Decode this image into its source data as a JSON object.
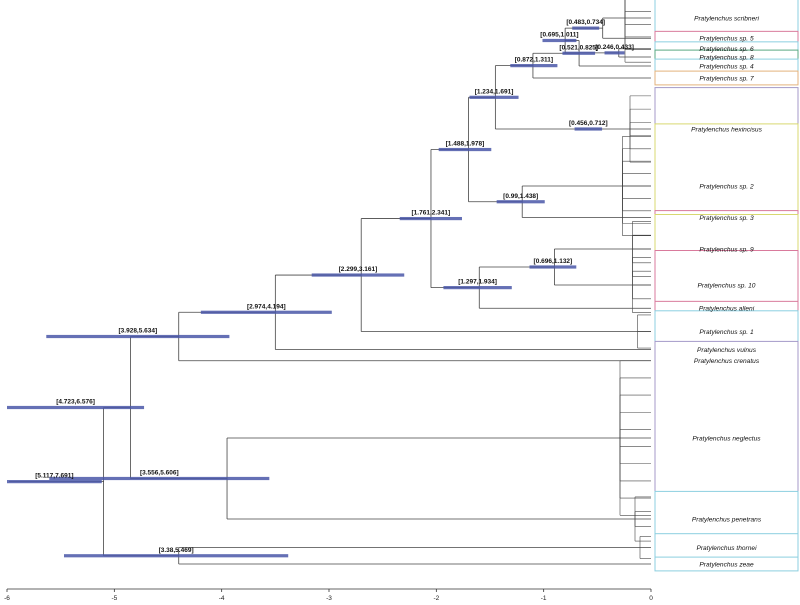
{
  "chart_data": {
    "type": "phylogenetic-tree",
    "title": "",
    "xlabel": "",
    "ylabel": "",
    "x_axis": {
      "range": [
        -6,
        0
      ],
      "ticks": [
        -6,
        -5,
        -4,
        -3,
        -2,
        -1,
        0
      ]
    },
    "grid": false,
    "legend": "none",
    "colors": {
      "branch": "#444444",
      "hpd_bar": "#4a57a8",
      "axis": "#333333",
      "box_cyan": "#8ccfe0",
      "box_pink": "#d97a9c",
      "box_yellow": "#d8d870",
      "box_purple": "#a49ac8",
      "box_green": "#5aa883",
      "box_orange": "#e3b27c"
    },
    "tips": [
      {
        "id": "scribneri",
        "label": "Pratylenchus scribneri",
        "y": 0,
        "box": "cyan",
        "stack": 8
      },
      {
        "id": "sp5",
        "label": "Pratylenchus sp. 5",
        "y": 1.35,
        "box": "pink",
        "stack": 1
      },
      {
        "id": "sp6",
        "label": "Pratylenchus sp. 6",
        "y": 2.05,
        "box": "cyan",
        "stack": 1
      },
      {
        "id": "sp8",
        "label": "Pratylenchus sp. 8",
        "y": 2.6,
        "box": "green",
        "stack": 1
      },
      {
        "id": "sp4",
        "label": "Pratylenchus sp. 4",
        "y": 3.2,
        "box": "cyan",
        "stack": 1
      },
      {
        "id": "sp7",
        "label": "Pratylenchus sp. 7",
        "y": 4.0,
        "box": "orange",
        "stack": 1
      },
      {
        "id": "hexincisus",
        "label": "Pratylenchus hexincisus",
        "y": 7.4,
        "box": "purple",
        "stack": 6
      },
      {
        "id": "sp2",
        "label": "Pratylenchus sp. 2",
        "y": 11.2,
        "box": "yellow",
        "stack": 9
      },
      {
        "id": "sp3",
        "label": "Pratylenchus sp. 3",
        "y": 13.3,
        "box": "pink",
        "stack": 1
      },
      {
        "id": "sp9",
        "label": "Pratylenchus sp. 9",
        "y": 15.4,
        "box": "yellow",
        "stack": 5
      },
      {
        "id": "sp10",
        "label": "Pratylenchus sp. 10",
        "y": 17.8,
        "box": "pink",
        "stack": 5
      },
      {
        "id": "alleni",
        "label": "Pratylenchus alleni",
        "y": 19.35,
        "box": "pink",
        "stack": 1
      },
      {
        "id": "sp1",
        "label": "Pratylenchus sp. 1",
        "y": 20.9,
        "box": "cyan",
        "stack": 3
      },
      {
        "id": "vulnus",
        "label": "Pratylenchus vulnus",
        "y": 22.1,
        "box": "cyan",
        "stack": 1
      },
      {
        "id": "crenatus",
        "label": "Pratylenchus crenatus",
        "y": 22.85,
        "box": "pink",
        "stack": 1
      },
      {
        "id": "neglectus",
        "label": "Pratylenchus neglectus",
        "y": 28.0,
        "box": "purple",
        "stack": 14
      },
      {
        "id": "penetrans",
        "label": "Pratylenchus penetrans",
        "y": 33.4,
        "box": "cyan",
        "stack": 4
      },
      {
        "id": "thornei",
        "label": "Pratylenchus thornei",
        "y": 35.3,
        "box": "cyan",
        "stack": 2
      },
      {
        "id": "zeae",
        "label": "Pratylenchus zeae",
        "y": 36.4,
        "box": "cyan",
        "stack": 1
      }
    ],
    "nodes": [
      {
        "id": "n_scrib_sp5",
        "age": -0.45,
        "children": [
          "scribneri",
          "sp5"
        ],
        "hpd": [
          -0.734,
          -0.483
        ],
        "label": "[0.483,0.734]"
      },
      {
        "id": "n_sp6_sp8",
        "age": -0.3,
        "children": [
          "sp6",
          "sp8"
        ],
        "hpd": [
          -0.433,
          -0.246
        ],
        "label": "[0.246,0.433]"
      },
      {
        "id": "n_a",
        "age": -0.8,
        "children": [
          "n_scrib_sp5",
          "n_sp6_sp8"
        ],
        "hpd": [
          -1.011,
          -0.695
        ],
        "label": "[0.695,1.011]"
      },
      {
        "id": "n_b",
        "age": -0.67,
        "children": [
          "n_a",
          "sp4"
        ],
        "hpd": [
          -0.825,
          -0.521
        ],
        "label": "[0.521,0.825]"
      },
      {
        "id": "n_c",
        "age": -1.1,
        "children": [
          "n_b",
          "sp7"
        ],
        "hpd": [
          -1.311,
          -0.872
        ],
        "label": "[0.872,1.311]"
      },
      {
        "id": "n_hex",
        "age": -0.58,
        "children": [
          "hexincisus"
        ],
        "hpd": [
          -0.712,
          -0.456
        ],
        "label": "[0.456,0.712]"
      },
      {
        "id": "n_d",
        "age": -1.45,
        "children": [
          "n_c",
          "n_hex"
        ],
        "hpd": [
          -1.691,
          -1.234
        ],
        "label": "[1.234,1.691]"
      },
      {
        "id": "n_e",
        "age": -1.2,
        "children": [
          "sp2",
          "sp3"
        ],
        "hpd": [
          -1.438,
          -0.99
        ],
        "label": "[0.99,1.438]"
      },
      {
        "id": "n_f",
        "age": -1.7,
        "children": [
          "n_d",
          "n_e"
        ],
        "hpd": [
          -1.978,
          -1.488
        ],
        "label": "[1.488,1.978]"
      },
      {
        "id": "n_g",
        "age": -0.9,
        "children": [
          "sp9",
          "sp10"
        ],
        "hpd": [
          -1.132,
          -0.696
        ],
        "label": "[0.696,1.132]"
      },
      {
        "id": "n_h",
        "age": -1.6,
        "children": [
          "n_g",
          "alleni"
        ],
        "hpd": [
          -1.934,
          -1.297
        ],
        "label": "[1.297,1.934]"
      },
      {
        "id": "n_i",
        "age": -2.05,
        "children": [
          "n_f",
          "n_h"
        ],
        "hpd": [
          -2.341,
          -1.761
        ],
        "label": "[1.761,2.341]"
      },
      {
        "id": "n_j",
        "age": -2.7,
        "children": [
          "n_i",
          "sp1"
        ],
        "hpd": [
          -3.161,
          -2.299
        ],
        "label": "[2.299,3.161]"
      },
      {
        "id": "n_k",
        "age": -3.5,
        "children": [
          "n_j",
          "vulnus"
        ],
        "hpd": [
          -4.194,
          -2.974
        ],
        "label": "[2.974,4.194]"
      },
      {
        "id": "n_l",
        "age": -4.4,
        "children": [
          "n_k",
          "crenatus"
        ],
        "hpd": [
          -5.634,
          -3.928
        ],
        "label": "[3.928,5.634]"
      },
      {
        "id": "n_m",
        "age": -3.95,
        "children": [
          "neglectus",
          "penetrans"
        ],
        "hpd": [
          -5.606,
          -3.556
        ],
        "label": "[3.556,5.606]"
      },
      {
        "id": "n_n",
        "age": -4.85,
        "children": [
          "n_l",
          "n_m"
        ],
        "hpd": [
          -6.576,
          -4.723
        ],
        "label": "[4.723,6.576]"
      },
      {
        "id": "n_o",
        "age": -4.4,
        "children": [
          "thornei",
          "zeae"
        ],
        "hpd": [
          -5.469,
          -3.38
        ],
        "label": "[3.38,5.469]"
      },
      {
        "id": "root",
        "age": -5.1,
        "children": [
          "n_n",
          "n_o"
        ],
        "hpd": [
          -7.691,
          -5.117
        ],
        "label": "[5.117,7.691]"
      }
    ]
  }
}
